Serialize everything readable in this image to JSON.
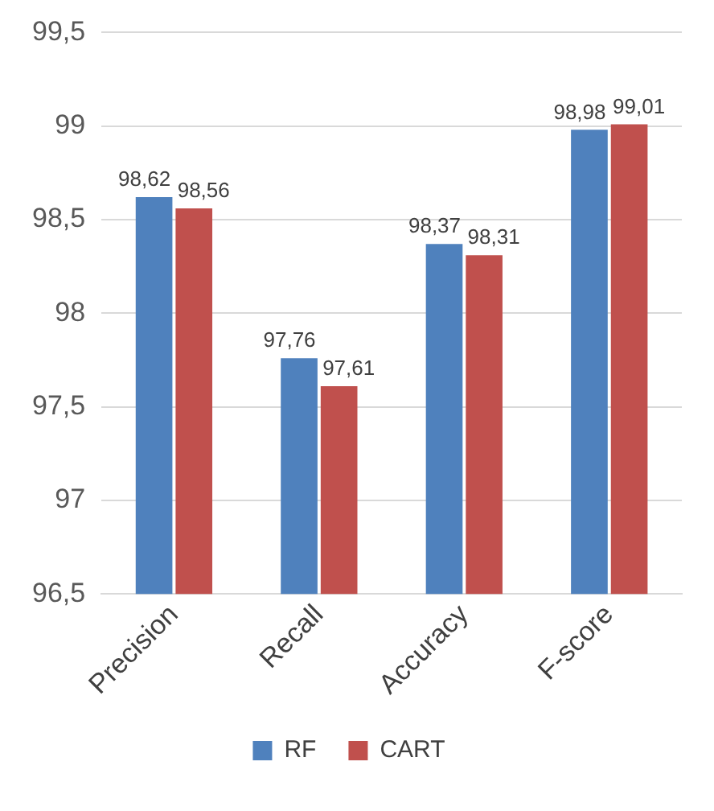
{
  "chart_data": {
    "type": "bar",
    "categories": [
      "Precision",
      "Recall",
      "Accuracy",
      "F-score"
    ],
    "series": [
      {
        "name": "RF",
        "color": "#4f81bd",
        "values": [
          98.62,
          97.76,
          98.37,
          98.98
        ],
        "value_labels": [
          "98,62",
          "97,76",
          "98,37",
          "98,98"
        ]
      },
      {
        "name": "CART",
        "color": "#c0504d",
        "values": [
          98.56,
          97.61,
          98.31,
          99.01
        ],
        "value_labels": [
          "98,56",
          "97,61",
          "98,31",
          "99,01"
        ]
      }
    ],
    "ylim": [
      96.5,
      99.5
    ],
    "yticks": [
      {
        "value": 96.5,
        "label": "96,5"
      },
      {
        "value": 97,
        "label": "97"
      },
      {
        "value": 97.5,
        "label": "97,5"
      },
      {
        "value": 98,
        "label": "98"
      },
      {
        "value": 98.5,
        "label": "98,5"
      },
      {
        "value": 99,
        "label": "99"
      },
      {
        "value": 99.5,
        "label": "99,5"
      }
    ],
    "grid": "y",
    "legend": "bottom"
  }
}
